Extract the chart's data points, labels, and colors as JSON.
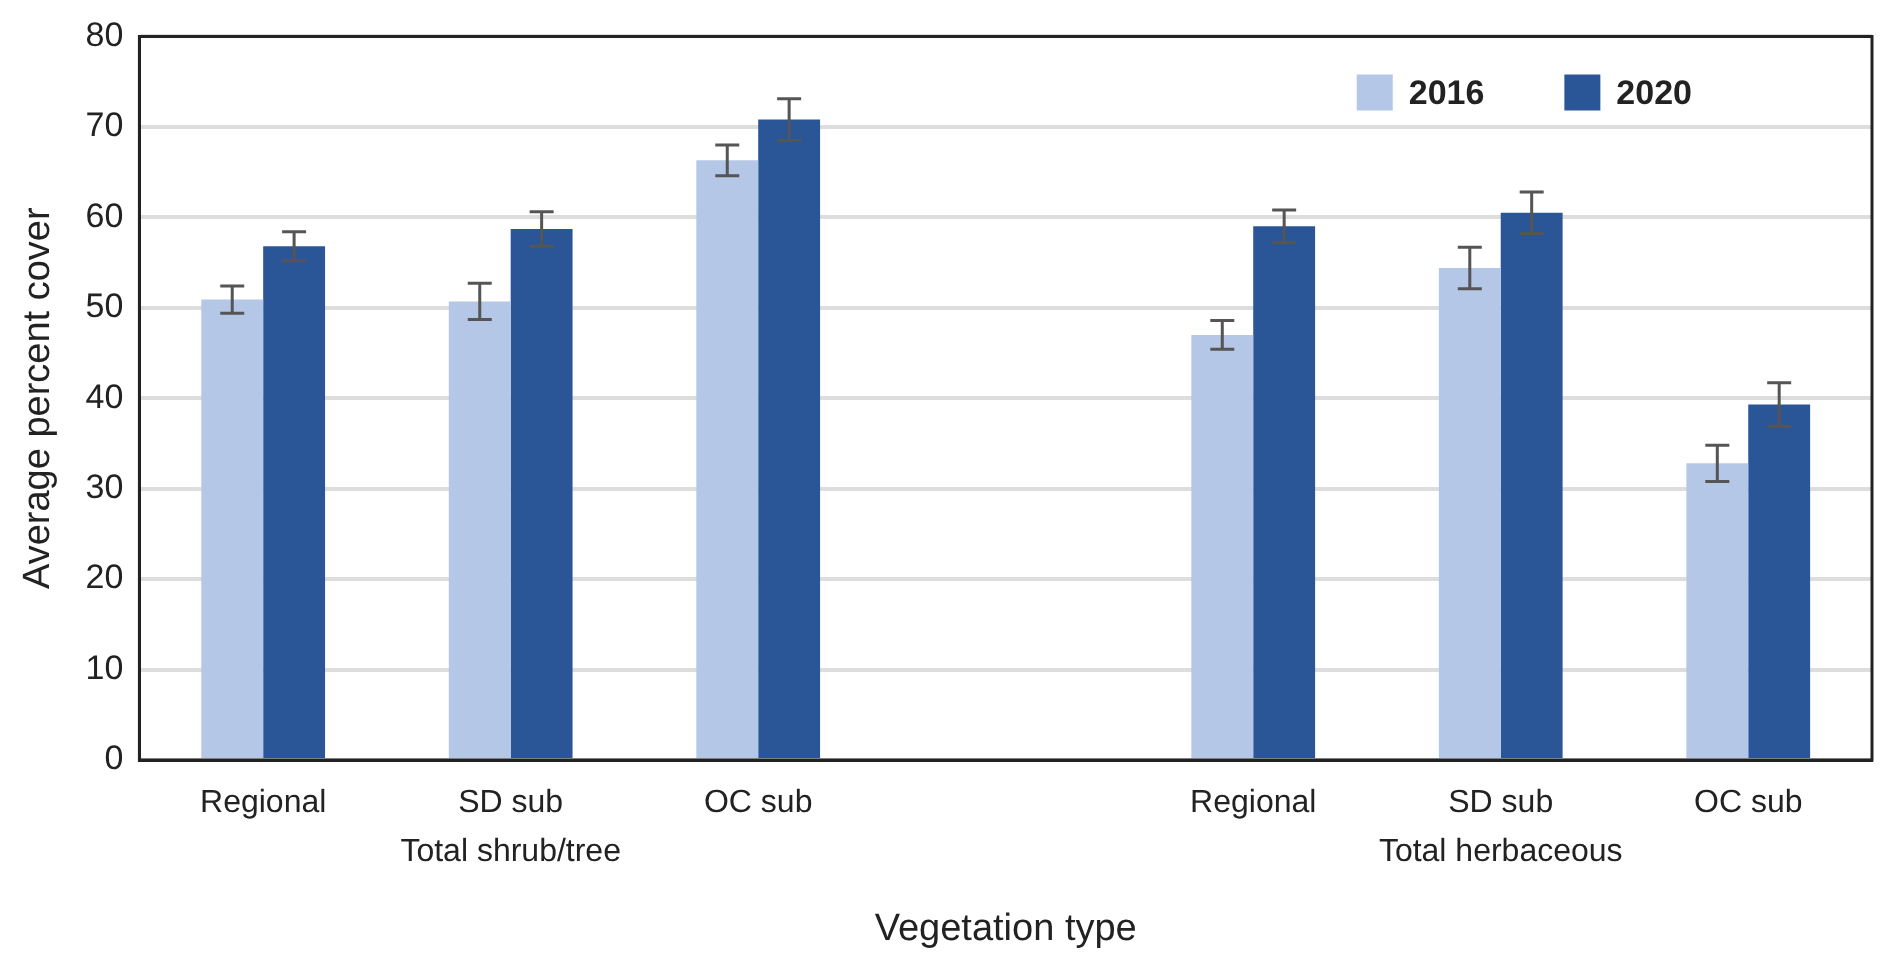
{
  "chart_data": {
    "type": "bar",
    "xlabel": "Vegetation type",
    "ylabel": "Average percent cover",
    "categories": [
      "Regional",
      "SD sub",
      "OC sub",
      null,
      "Regional",
      "SD sub",
      "OC sub"
    ],
    "series": [
      {
        "name": "2016",
        "color": "#b4c7e7",
        "values": [
          50.9,
          50.7,
          66.3,
          null,
          47.0,
          54.4,
          32.8
        ],
        "errors": [
          1.5,
          2.0,
          1.7,
          null,
          1.6,
          2.3,
          2.0
        ]
      },
      {
        "name": "2020",
        "color": "#2a5698",
        "values": [
          56.8,
          58.7,
          70.8,
          null,
          59.0,
          60.5,
          39.3
        ],
        "errors": [
          1.6,
          1.9,
          2.3,
          null,
          1.8,
          2.3,
          2.4
        ]
      }
    ],
    "annotations": [
      "Total shrub/tree",
      "Total herbaceous"
    ],
    "ylim": [
      0,
      80
    ],
    "yticks": [
      0,
      10,
      20,
      30,
      40,
      50,
      60,
      70,
      80
    ],
    "grid": "y",
    "legend": "top right"
  }
}
